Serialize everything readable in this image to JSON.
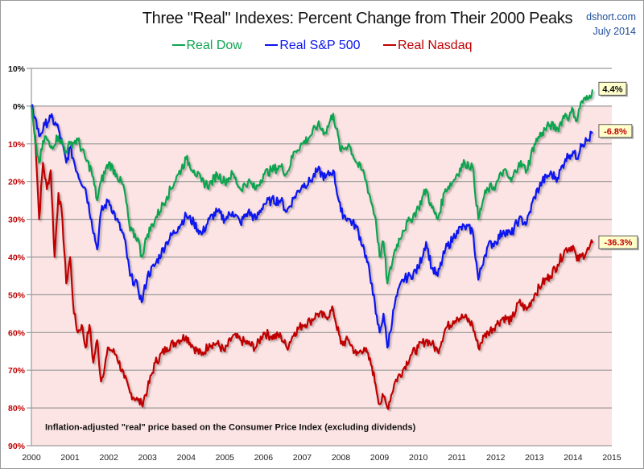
{
  "header": {
    "title": "Three \"Real\" Indexes: Percent Change from Their 2000 Peaks",
    "source_line1": "dshort.com",
    "source_line2": "July 2014"
  },
  "legend": [
    {
      "label": "Real Dow",
      "color": "#0fa450"
    },
    {
      "label": "Real S&P 500",
      "color": "#0a14ee"
    },
    {
      "label": "Real Nasdaq",
      "color": "#c00000"
    }
  ],
  "note": "Inflation-adjusted \"real\" price based on the Consumer Price Index (excluding dividends)",
  "colors": {
    "plot_bg_negative": "#fde4e4",
    "gridline": "#9a9a9a",
    "ytick_positive": "#111111",
    "ytick_negative": "#c00000",
    "label_box_bg": "#ffffcc"
  },
  "chart_data": {
    "type": "line",
    "title": "Three \"Real\" Indexes: Percent Change from Their 2000 Peaks",
    "xlabel": "",
    "ylabel": "",
    "xlim": [
      2000,
      2015
    ],
    "ylim": [
      -90,
      10
    ],
    "grid": true,
    "legend_position": "top-center",
    "x_ticks": [
      "2000",
      "2001",
      "2002",
      "2003",
      "2004",
      "2005",
      "2006",
      "2007",
      "2008",
      "2009",
      "2010",
      "2011",
      "2012",
      "2013",
      "2014",
      "2015"
    ],
    "y_ticks": [
      {
        "value": 10,
        "label": "10%"
      },
      {
        "value": 0,
        "label": "0%"
      },
      {
        "value": -10,
        "label": "10%"
      },
      {
        "value": -20,
        "label": "20%"
      },
      {
        "value": -30,
        "label": "30%"
      },
      {
        "value": -40,
        "label": "40%"
      },
      {
        "value": -50,
        "label": "50%"
      },
      {
        "value": -60,
        "label": "60%"
      },
      {
        "value": -70,
        "label": "70%"
      },
      {
        "value": -80,
        "label": "80%"
      },
      {
        "value": -90,
        "label": "90%"
      }
    ],
    "series": [
      {
        "name": "Real Dow",
        "color": "#0fa450",
        "end_label": "4.4%",
        "end_label_color": "#111111",
        "x": [
          2000.0,
          2000.1,
          2000.2,
          2000.35,
          2000.5,
          2000.7,
          2000.9,
          2001.0,
          2001.2,
          2001.4,
          2001.55,
          2001.7,
          2001.8,
          2002.0,
          2002.2,
          2002.4,
          2002.55,
          2002.75,
          2002.85,
          2003.0,
          2003.2,
          2003.5,
          2003.8,
          2004.0,
          2004.2,
          2004.4,
          2004.6,
          2004.8,
          2005.0,
          2005.2,
          2005.4,
          2005.6,
          2005.8,
          2006.0,
          2006.2,
          2006.45,
          2006.6,
          2006.8,
          2007.0,
          2007.2,
          2007.4,
          2007.6,
          2007.8,
          2008.0,
          2008.2,
          2008.4,
          2008.6,
          2008.8,
          2008.9,
          2009.0,
          2009.1,
          2009.2,
          2009.4,
          2009.6,
          2009.8,
          2010.0,
          2010.2,
          2010.35,
          2010.5,
          2010.7,
          2010.9,
          2011.0,
          2011.2,
          2011.4,
          2011.55,
          2011.7,
          2011.8,
          2012.0,
          2012.2,
          2012.4,
          2012.6,
          2012.8,
          2013.0,
          2013.2,
          2013.4,
          2013.6,
          2013.8,
          2013.9,
          2014.0,
          2014.1,
          2014.2,
          2014.4,
          2014.5
        ],
        "y": [
          0,
          -10,
          -15,
          -8,
          -11,
          -8,
          -12,
          -10,
          -9,
          -14,
          -17,
          -25,
          -20,
          -15,
          -18,
          -22,
          -33,
          -35,
          -40,
          -34,
          -30,
          -24,
          -18,
          -14,
          -17,
          -20,
          -21,
          -18,
          -20,
          -18,
          -22,
          -20,
          -22,
          -18,
          -17,
          -16,
          -18,
          -12,
          -10,
          -8,
          -5,
          -7,
          -2,
          -12,
          -10,
          -15,
          -18,
          -26,
          -30,
          -40,
          -36,
          -47,
          -38,
          -33,
          -30,
          -27,
          -22,
          -27,
          -30,
          -22,
          -20,
          -18,
          -15,
          -16,
          -30,
          -24,
          -22,
          -21,
          -17,
          -20,
          -15,
          -17,
          -10,
          -7,
          -5,
          -6,
          -2,
          -3,
          -1,
          -4,
          1,
          2,
          4.4
        ]
      },
      {
        "name": "Real S&P 500",
        "color": "#0a14ee",
        "end_label": "-6.8%",
        "end_label_color": "#c00000",
        "x": [
          2000.0,
          2000.1,
          2000.2,
          2000.35,
          2000.5,
          2000.7,
          2000.9,
          2001.0,
          2001.2,
          2001.4,
          2001.55,
          2001.7,
          2001.8,
          2002.0,
          2002.2,
          2002.4,
          2002.55,
          2002.75,
          2002.85,
          2003.0,
          2003.2,
          2003.5,
          2003.8,
          2004.0,
          2004.2,
          2004.4,
          2004.6,
          2004.8,
          2005.0,
          2005.2,
          2005.4,
          2005.6,
          2005.8,
          2006.0,
          2006.2,
          2006.45,
          2006.6,
          2006.8,
          2007.0,
          2007.2,
          2007.4,
          2007.6,
          2007.8,
          2008.0,
          2008.2,
          2008.4,
          2008.6,
          2008.8,
          2008.9,
          2009.0,
          2009.1,
          2009.2,
          2009.4,
          2009.6,
          2009.8,
          2010.0,
          2010.2,
          2010.35,
          2010.5,
          2010.7,
          2010.9,
          2011.0,
          2011.2,
          2011.4,
          2011.55,
          2011.7,
          2011.8,
          2012.0,
          2012.2,
          2012.4,
          2012.6,
          2012.8,
          2013.0,
          2013.2,
          2013.4,
          2013.6,
          2013.8,
          2013.9,
          2014.0,
          2014.1,
          2014.2,
          2014.4,
          2014.5
        ],
        "y": [
          0,
          -3,
          -8,
          -5,
          -3,
          -6,
          -15,
          -11,
          -18,
          -22,
          -30,
          -38,
          -28,
          -25,
          -30,
          -35,
          -45,
          -48,
          -52,
          -45,
          -42,
          -36,
          -32,
          -29,
          -31,
          -34,
          -30,
          -28,
          -30,
          -28,
          -31,
          -28,
          -30,
          -26,
          -25,
          -25,
          -28,
          -24,
          -21,
          -20,
          -17,
          -19,
          -17,
          -28,
          -30,
          -32,
          -38,
          -47,
          -55,
          -60,
          -55,
          -64,
          -52,
          -46,
          -45,
          -43,
          -36,
          -43,
          -45,
          -38,
          -35,
          -33,
          -32,
          -33,
          -46,
          -40,
          -37,
          -36,
          -33,
          -34,
          -30,
          -31,
          -24,
          -20,
          -18,
          -19,
          -14,
          -13,
          -12,
          -14,
          -10,
          -9,
          -6.8
        ]
      },
      {
        "name": "Real Nasdaq",
        "color": "#c00000",
        "end_label": "-36.3%",
        "end_label_color": "#c00000",
        "x": [
          2000.0,
          2000.1,
          2000.2,
          2000.3,
          2000.4,
          2000.5,
          2000.6,
          2000.7,
          2000.8,
          2000.9,
          2001.0,
          2001.1,
          2001.2,
          2001.3,
          2001.4,
          2001.5,
          2001.6,
          2001.7,
          2001.8,
          2002.0,
          2002.2,
          2002.4,
          2002.55,
          2002.75,
          2002.85,
          2003.0,
          2003.2,
          2003.5,
          2003.8,
          2004.0,
          2004.2,
          2004.4,
          2004.6,
          2004.8,
          2005.0,
          2005.2,
          2005.4,
          2005.6,
          2005.8,
          2006.0,
          2006.2,
          2006.45,
          2006.6,
          2006.8,
          2007.0,
          2007.2,
          2007.4,
          2007.6,
          2007.8,
          2008.0,
          2008.2,
          2008.4,
          2008.6,
          2008.8,
          2008.9,
          2009.0,
          2009.1,
          2009.2,
          2009.4,
          2009.6,
          2009.8,
          2010.0,
          2010.2,
          2010.35,
          2010.5,
          2010.7,
          2010.9,
          2011.0,
          2011.2,
          2011.4,
          2011.55,
          2011.7,
          2011.8,
          2012.0,
          2012.2,
          2012.4,
          2012.6,
          2012.8,
          2013.0,
          2013.2,
          2013.4,
          2013.6,
          2013.8,
          2014.0,
          2014.1,
          2014.2,
          2014.4,
          2014.5
        ],
        "y": [
          0,
          -8,
          -30,
          -15,
          -22,
          -17,
          -40,
          -23,
          -30,
          -47,
          -40,
          -55,
          -60,
          -58,
          -64,
          -58,
          -68,
          -62,
          -73,
          -64,
          -66,
          -72,
          -76,
          -78,
          -79,
          -75,
          -68,
          -64,
          -62,
          -61,
          -64,
          -66,
          -63,
          -63,
          -65,
          -61,
          -62,
          -63,
          -64,
          -60,
          -61,
          -61,
          -64,
          -60,
          -58,
          -57,
          -55,
          -56,
          -54,
          -63,
          -62,
          -66,
          -64,
          -69,
          -74,
          -79,
          -77,
          -80,
          -73,
          -70,
          -66,
          -64,
          -62,
          -63,
          -65,
          -59,
          -57,
          -56,
          -56,
          -58,
          -64,
          -61,
          -60,
          -58,
          -56,
          -57,
          -52,
          -54,
          -50,
          -47,
          -45,
          -42,
          -38,
          -37,
          -41,
          -40,
          -38,
          -36.3
        ]
      }
    ],
    "annotation": "Inflation-adjusted \"real\" price based on the Consumer Price Index (excluding dividends)"
  }
}
